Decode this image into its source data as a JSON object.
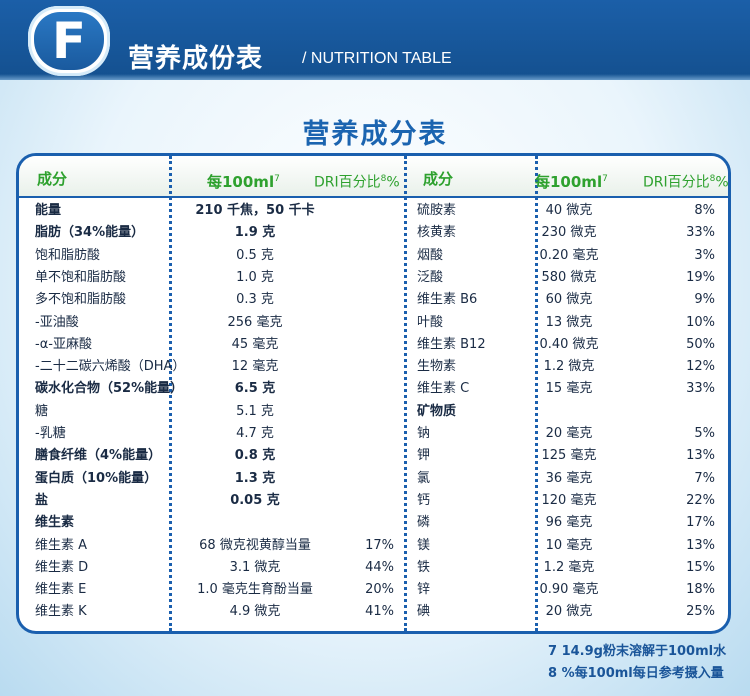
{
  "header": {
    "letter": "F",
    "title": "营养成份表",
    "subtitle": "/ NUTRITION TABLE"
  },
  "table_title": "营养成分表",
  "columns": {
    "component": "成分",
    "per100": "每100ml",
    "per100_sup": "7",
    "dri": "DRI百分比",
    "dri_sup": "8",
    "dri_suffix": "%"
  },
  "left_rows": [
    {
      "name": "能量",
      "value": "210 千焦，50 千卡",
      "dri": "",
      "bold": true
    },
    {
      "name": "脂肪（34%能量）",
      "value": "1.9 克",
      "dri": "",
      "bold": true
    },
    {
      "name": "饱和脂肪酸",
      "value": "0.5 克",
      "dri": "",
      "bold": false
    },
    {
      "name": "单不饱和脂肪酸",
      "value": "1.0 克",
      "dri": "",
      "bold": false
    },
    {
      "name": "多不饱和脂肪酸",
      "value": "0.3 克",
      "dri": "",
      "bold": false
    },
    {
      "name": "-亚油酸",
      "value": "256 毫克",
      "dri": "",
      "bold": false
    },
    {
      "name": "-α-亚麻酸",
      "value": "45 毫克",
      "dri": "",
      "bold": false
    },
    {
      "name": "-二十二碳六烯酸（DHA）",
      "value": "12 毫克",
      "dri": "",
      "bold": false
    },
    {
      "name": "碳水化合物（52%能量）",
      "value": "6.5 克",
      "dri": "",
      "bold": true
    },
    {
      "name": "糖",
      "value": "5.1 克",
      "dri": "",
      "bold": false
    },
    {
      "name": "-乳糖",
      "value": "4.7 克",
      "dri": "",
      "bold": false
    },
    {
      "name": "膳食纤维（4%能量）",
      "value": "0.8 克",
      "dri": "",
      "bold": true
    },
    {
      "name": "蛋白质（10%能量）",
      "value": "1.3 克",
      "dri": "",
      "bold": true
    },
    {
      "name": "盐",
      "value": "0.05 克",
      "dri": "",
      "bold": true
    },
    {
      "name": "维生素",
      "value": "",
      "dri": "",
      "bold": true
    },
    {
      "name": "维生素 A",
      "value": "68 微克视黄醇当量",
      "dri": "17%",
      "bold": false
    },
    {
      "name": "维生素 D",
      "value": "3.1 微克",
      "dri": "44%",
      "bold": false
    },
    {
      "name": "维生素 E",
      "value": "1.0 毫克生育酚当量",
      "dri": "20%",
      "bold": false
    },
    {
      "name": "维生素 K",
      "value": "4.9 微克",
      "dri": "41%",
      "bold": false
    }
  ],
  "right_rows": [
    {
      "name": "硫胺素",
      "value": "40 微克",
      "dri": "8%",
      "bold": false
    },
    {
      "name": "核黄素",
      "value": "230 微克",
      "dri": "33%",
      "bold": false
    },
    {
      "name": "烟酸",
      "value": "0.20 毫克",
      "dri": "3%",
      "bold": false
    },
    {
      "name": "泛酸",
      "value": "580 微克",
      "dri": "19%",
      "bold": false
    },
    {
      "name": "维生素 B6",
      "value": "60 微克",
      "dri": "9%",
      "bold": false
    },
    {
      "name": "叶酸",
      "value": "13 微克",
      "dri": "10%",
      "bold": false
    },
    {
      "name": "维生素 B12",
      "value": "0.40 微克",
      "dri": "50%",
      "bold": false
    },
    {
      "name": "生物素",
      "value": "1.2 微克",
      "dri": "12%",
      "bold": false
    },
    {
      "name": "维生素 C",
      "value": "15 毫克",
      "dri": "33%",
      "bold": false
    },
    {
      "name": "矿物质",
      "value": "",
      "dri": "",
      "bold": true
    },
    {
      "name": "钠",
      "value": "20 毫克",
      "dri": "5%",
      "bold": false
    },
    {
      "name": "钾",
      "value": "125 毫克",
      "dri": "13%",
      "bold": false
    },
    {
      "name": "氯",
      "value": "36 毫克",
      "dri": "7%",
      "bold": false
    },
    {
      "name": "钙",
      "value": "120 毫克",
      "dri": "22%",
      "bold": false
    },
    {
      "name": "磷",
      "value": "96 毫克",
      "dri": "17%",
      "bold": false
    },
    {
      "name": "镁",
      "value": "10 毫克",
      "dri": "13%",
      "bold": false
    },
    {
      "name": "铁",
      "value": "1.2 毫克",
      "dri": "15%",
      "bold": false
    },
    {
      "name": "锌",
      "value": "0.90 毫克",
      "dri": "18%",
      "bold": false
    },
    {
      "name": "碘",
      "value": "20 微克",
      "dri": "25%",
      "bold": false
    }
  ],
  "footnotes": [
    "7  14.9g粉末溶解于100ml水",
    "8 %每100ml每日参考摄入量"
  ]
}
